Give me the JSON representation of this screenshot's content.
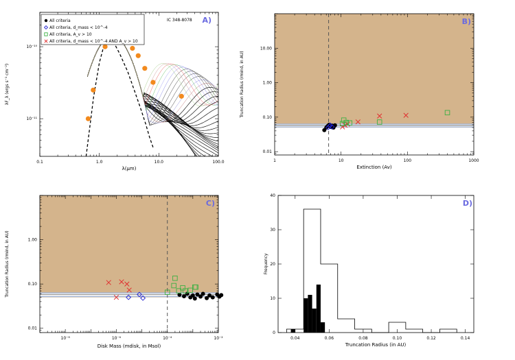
{
  "colors": {
    "shade": "#d4b48c",
    "panel_letter": "#6a6ae0",
    "accent_orange": "#f28a1e",
    "green": "#3cb043",
    "red": "#e03030",
    "blue": "#2020d0",
    "band_blue": "#9ab0d8",
    "band_gray": "#a0a0a0"
  },
  "chart_data": [
    {
      "id": "A",
      "type": "line",
      "panel_label": "A)",
      "subtitle": "IC 348-8078",
      "xlabel": "λ(μm)",
      "ylabel": "λF_λ (ergs s⁻¹ cm⁻²)",
      "xscale": "log",
      "yscale": "log",
      "xlim": [
        0.1,
        100.0
      ],
      "ylim": [
        3e-12,
        3e-10
      ],
      "xticks": [
        0.1,
        1.0,
        10.0,
        100.0
      ],
      "xtick_labels": [
        "0.1",
        "1.0",
        "10.0",
        "100.0"
      ],
      "yticks": [
        1e-11,
        1e-10
      ],
      "ytick_labels": [
        "10⁻¹¹",
        "10⁻¹⁰"
      ],
      "legend": [
        {
          "label": "All criteria",
          "marker": "filled-circle",
          "color": "#000000"
        },
        {
          "label": "All criteria, d_mass < 10^-4",
          "marker": "diamond",
          "color": "#2020d0"
        },
        {
          "label": "All criteria, A_v > 10",
          "marker": "square",
          "color": "#3cb043"
        },
        {
          "label": "All criteria, d_mass < 10^-4 AND A_v > 10",
          "marker": "x",
          "color": "#e03030"
        }
      ],
      "photometry": {
        "x": [
          0.65,
          0.79,
          1.25,
          1.65,
          2.16,
          3.6,
          4.5,
          5.8,
          8.0,
          24.0
        ],
        "y": [
          1e-11,
          2.5e-11,
          1e-10,
          1.5e-10,
          1.45e-10,
          9.5e-11,
          7.5e-11,
          5e-11,
          3.2e-11,
          2.05e-11
        ]
      },
      "photosphere": {
        "x": [
          0.6,
          0.8,
          1.0,
          1.2,
          1.5,
          1.7,
          2.2,
          3.0,
          4.0,
          5.0,
          6.0,
          7.0,
          8.0
        ],
        "y": [
          3e-12,
          2e-11,
          6e-11,
          1.05e-10,
          1.25e-10,
          1.2e-10,
          8e-11,
          4.5e-11,
          2.3e-11,
          1.35e-11,
          8.5e-12,
          5.5e-12,
          4e-12
        ]
      }
    },
    {
      "id": "B",
      "type": "scatter",
      "panel_label": "B)",
      "xlabel": "Extinction (Av)",
      "ylabel": "Truncation Radius (rmind, in AU)",
      "xscale": "log",
      "yscale": "log",
      "xlim": [
        1,
        1000
      ],
      "ylim": [
        0.008,
        100
      ],
      "xticks": [
        1,
        10,
        100,
        1000
      ],
      "xtick_labels": [
        "1",
        "10",
        "100",
        "1000"
      ],
      "yticks": [
        0.01,
        0.1,
        1.0,
        10.0
      ],
      "ytick_labels": [
        "0.01",
        "0.10",
        "1.00",
        "10.00"
      ],
      "shade_min": 0.05,
      "band": [
        0.052,
        0.063
      ],
      "band_line": 0.058,
      "vline": 6.5,
      "series": [
        {
          "marker": "filled-circle",
          "color": "#000000",
          "x": [
            5.6,
            6.0,
            6.3,
            6.6,
            7.0,
            7.3,
            7.7,
            8.1
          ],
          "y": [
            0.042,
            0.05,
            0.055,
            0.06,
            0.052,
            0.057,
            0.05,
            0.058
          ]
        },
        {
          "marker": "diamond",
          "color": "#2020d0",
          "x": [
            6.4,
            6.9,
            7.3,
            6.7
          ],
          "y": [
            0.05,
            0.058,
            0.052,
            0.055
          ]
        },
        {
          "marker": "x",
          "color": "#e03030",
          "x": [
            10.5,
            11.5,
            12.5,
            18,
            38,
            95
          ],
          "y": [
            0.052,
            0.058,
            0.063,
            0.073,
            0.108,
            0.113
          ]
        },
        {
          "marker": "square",
          "color": "#3cb043",
          "x": [
            10.5,
            11.0,
            12.0,
            13.5,
            38,
            400
          ],
          "y": [
            0.065,
            0.082,
            0.07,
            0.068,
            0.072,
            0.135
          ]
        }
      ]
    },
    {
      "id": "C",
      "type": "scatter",
      "panel_label": "C)",
      "xlabel": "Disk Mass (mdisk, in Msol)",
      "ylabel": "Truncation Radius (rmind, in AU)",
      "xscale": "log",
      "yscale": "log",
      "xlim": [
        1e-09,
        0.01
      ],
      "ylim": [
        0.008,
        10
      ],
      "xticks": [
        1e-08,
        1e-06,
        0.0001,
        0.01
      ],
      "xtick_labels": [
        "10⁻⁸",
        "10⁻⁶",
        "10⁻⁴",
        "10⁻²"
      ],
      "yticks": [
        0.01,
        0.1,
        1.0
      ],
      "ytick_labels": [
        "0.01",
        "0.10",
        "1.00"
      ],
      "shade_min": 0.05,
      "band": [
        0.052,
        0.063
      ],
      "band_line": 0.058,
      "vline": 0.0001,
      "series": [
        {
          "marker": "filled-circle",
          "color": "#000000",
          "x": [
            0.0003,
            0.00045,
            0.0006,
            0.0008,
            0.001,
            0.0012,
            0.0015,
            0.002,
            0.0025,
            0.0035,
            0.0045,
            0.006,
            0.009,
            0.011,
            0.013
          ],
          "y": [
            0.057,
            0.053,
            0.06,
            0.05,
            0.055,
            0.047,
            0.058,
            0.052,
            0.06,
            0.048,
            0.055,
            0.05,
            0.058,
            0.052,
            0.056
          ]
        },
        {
          "marker": "diamond",
          "color": "#2020d0",
          "x": [
            3e-06,
            8e-06,
            1.1e-05
          ],
          "y": [
            0.05,
            0.058,
            0.048
          ]
        },
        {
          "marker": "x",
          "color": "#e03030",
          "x": [
            5e-07,
            1e-06,
            1.6e-06,
            2.6e-06,
            3.2e-06
          ],
          "y": [
            0.108,
            0.05,
            0.112,
            0.1,
            0.073
          ]
        },
        {
          "marker": "square",
          "color": "#3cb043",
          "x": [
            0.0001,
            0.00018,
            0.0002,
            0.00028,
            0.0004,
            0.0005,
            0.0008,
            0.0012,
            0.0013
          ],
          "y": [
            0.065,
            0.092,
            0.135,
            0.07,
            0.082,
            0.07,
            0.072,
            0.085,
            0.085
          ]
        }
      ]
    },
    {
      "id": "D",
      "type": "bar",
      "panel_label": "D)",
      "xlabel": "Truncation Radius (in AU)",
      "ylabel": "Frequency",
      "xlim": [
        0.03,
        0.145
      ],
      "ylim": [
        0,
        40
      ],
      "xticks": [
        0.04,
        0.06,
        0.08,
        0.1,
        0.12,
        0.14
      ],
      "xtick_labels": [
        "0.04",
        "0.06",
        "0.08",
        "0.10",
        "0.12",
        "0.14"
      ],
      "yticks": [
        0,
        10,
        20,
        30,
        40
      ],
      "ytick_labels": [
        "0",
        "10",
        "20",
        "30",
        "40"
      ],
      "outline_hist": {
        "edges": [
          0.035,
          0.04,
          0.045,
          0.055,
          0.065,
          0.075,
          0.085,
          0.095,
          0.105,
          0.115,
          0.125,
          0.135
        ],
        "values": [
          1,
          1,
          36,
          20,
          4,
          1,
          0,
          3,
          1,
          0,
          1
        ]
      },
      "filled_hist": {
        "edges": [
          0.0375,
          0.04,
          0.0425,
          0.045,
          0.0475,
          0.05,
          0.0525,
          0.055,
          0.0575,
          0.06,
          0.0625
        ],
        "values": [
          1,
          0,
          0,
          10,
          11,
          7,
          14,
          3,
          0,
          0
        ]
      }
    }
  ]
}
